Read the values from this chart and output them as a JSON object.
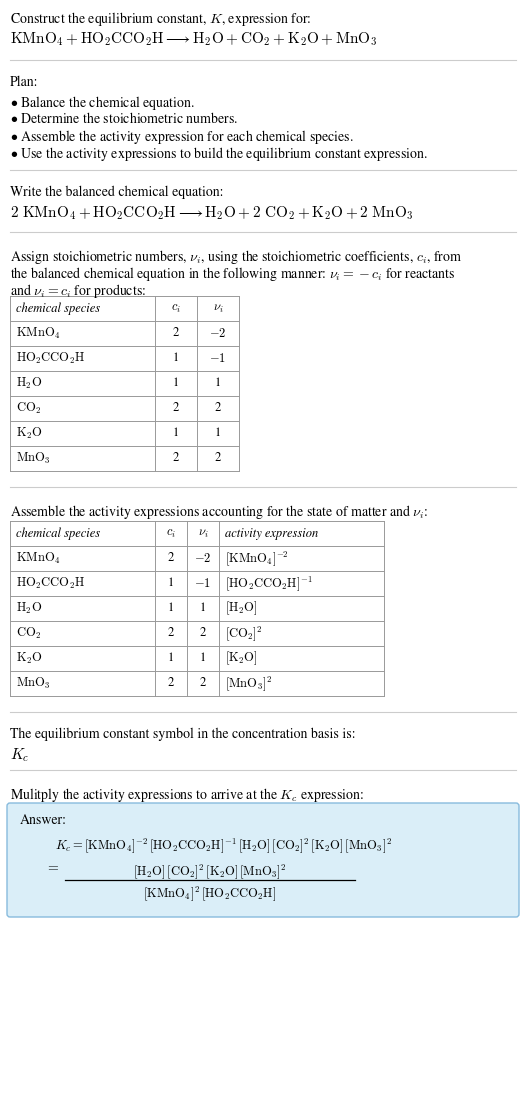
{
  "title_line1": "Construct the equilibrium constant, $K$, expression for:",
  "title_line2": "$\\mathrm{KMnO_4} + \\mathrm{HO_2CCO_2H} \\longrightarrow \\mathrm{H_2O} + \\mathrm{CO_2} + \\mathrm{K_2O} + \\mathrm{MnO_3}$",
  "plan_header": "Plan:",
  "plan_items": [
    "$\\bullet$ Balance the chemical equation.",
    "$\\bullet$ Determine the stoichiometric numbers.",
    "$\\bullet$ Assemble the activity expression for each chemical species.",
    "$\\bullet$ Use the activity expressions to build the equilibrium constant expression."
  ],
  "balanced_header": "Write the balanced chemical equation:",
  "balanced_eq": "$2\\ \\mathrm{KMnO_4} + \\mathrm{HO_2CCO_2H} \\longrightarrow \\mathrm{H_2O} + 2\\ \\mathrm{CO_2} + \\mathrm{K_2O} + 2\\ \\mathrm{MnO_3}$",
  "stoich_intro1": "Assign stoichiometric numbers, $\\nu_i$, using the stoichiometric coefficients, $c_i$, from",
  "stoich_intro2": "the balanced chemical equation in the following manner: $\\nu_i = -c_i$ for reactants",
  "stoich_intro3": "and $\\nu_i = c_i$ for products:",
  "table1_col0_header": "chemical species",
  "table1_col1_header": "$c_i$",
  "table1_col2_header": "$\\nu_i$",
  "table1_data": [
    [
      "$\\mathrm{KMnO_4}$",
      "2",
      "$-2$"
    ],
    [
      "$\\mathrm{HO_2CCO_2H}$",
      "1",
      "$-1$"
    ],
    [
      "$\\mathrm{H_2O}$",
      "1",
      "1"
    ],
    [
      "$\\mathrm{CO_2}$",
      "2",
      "2"
    ],
    [
      "$\\mathrm{K_2O}$",
      "1",
      "1"
    ],
    [
      "$\\mathrm{MnO_3}$",
      "2",
      "2"
    ]
  ],
  "activity_intro": "Assemble the activity expressions accounting for the state of matter and $\\nu_i$:",
  "table2_col0_header": "chemical species",
  "table2_col1_header": "$c_i$",
  "table2_col2_header": "$\\nu_i$",
  "table2_col3_header": "activity expression",
  "table2_data": [
    [
      "$\\mathrm{KMnO_4}$",
      "2",
      "$-2$",
      "$[\\mathrm{KMnO_4}]^{-2}$"
    ],
    [
      "$\\mathrm{HO_2CCO_2H}$",
      "1",
      "$-1$",
      "$[\\mathrm{HO_2CCO_2H}]^{-1}$"
    ],
    [
      "$\\mathrm{H_2O}$",
      "1",
      "1",
      "$[\\mathrm{H_2O}]$"
    ],
    [
      "$\\mathrm{CO_2}$",
      "2",
      "2",
      "$[\\mathrm{CO_2}]^2$"
    ],
    [
      "$\\mathrm{K_2O}$",
      "1",
      "1",
      "$[\\mathrm{K_2O}]$"
    ],
    [
      "$\\mathrm{MnO_3}$",
      "2",
      "2",
      "$[\\mathrm{MnO_3}]^2$"
    ]
  ],
  "kc_intro": "The equilibrium constant symbol in the concentration basis is:",
  "kc_symbol": "$K_c$",
  "multiply_intro": "Mulitply the activity expressions to arrive at the $K_c$ expression:",
  "answer_label": "Answer:",
  "answer_line1": "$K_c = [\\mathrm{KMnO_4}]^{-2}\\,[\\mathrm{HO_2CCO_2H}]^{-1}\\,[\\mathrm{H_2O}]\\,[\\mathrm{CO_2}]^2\\,[\\mathrm{K_2O}]\\,[\\mathrm{MnO_3}]^2$",
  "answer_eq_left": "$=$",
  "answer_numerator": "$[\\mathrm{H_2O}]\\,[\\mathrm{CO_2}]^2\\,[\\mathrm{K_2O}]\\,[\\mathrm{MnO_3}]^2$",
  "answer_denominator": "$[\\mathrm{KMnO_4}]^2\\,[\\mathrm{HO_2CCO_2H}]$",
  "bg_color": "#ffffff",
  "table_border_color": "#999999",
  "sep_line_color": "#cccccc",
  "answer_box_bg": "#daeef8",
  "answer_box_border": "#88bbdd",
  "text_color": "#000000",
  "fig_width": 5.24,
  "fig_height": 10.97,
  "dpi": 100
}
